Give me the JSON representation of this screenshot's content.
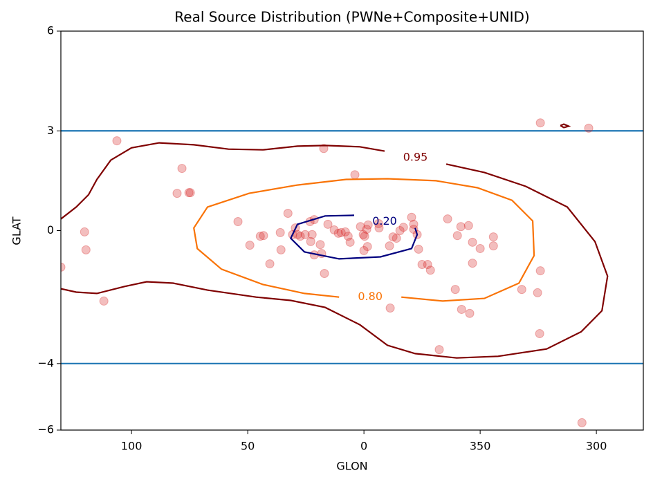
{
  "chart_data": {
    "type": "scatter-contour",
    "title": "Real Source Distribution (PWNe+Composite+UNID)",
    "x_label": "GLON",
    "y_label": "GLAT",
    "xlim": [
      130.4,
      -120.2
    ],
    "ylim": [
      -6,
      6
    ],
    "xticks": [
      100,
      50,
      0,
      {
        "value": -50,
        "label": "350"
      },
      {
        "value": -100,
        "label": "300"
      }
    ],
    "yticks": [
      {
        "value": -6,
        "label": "−6"
      },
      {
        "value": -4,
        "label": "−4"
      },
      0,
      3,
      6
    ],
    "hlines": {
      "color": "#1f77b4",
      "values": [
        3,
        -4
      ]
    },
    "points": {
      "color": "#d62728",
      "x": [
        130.4,
        120.2,
        119.6,
        111.9,
        106.3,
        80.4,
        78.3,
        75.3,
        74.7,
        54.2,
        49.1,
        44.6,
        43.2,
        40.5,
        36.0,
        35.7,
        32.7,
        30.7,
        29.5,
        28.6,
        27.4,
        25.3,
        23.2,
        22.9,
        22.3,
        21.4,
        21.4,
        18.8,
        18.2,
        17.3,
        17.0,
        15.5,
        12.8,
        11.0,
        9.8,
        8.0,
        6.8,
        5.95,
        3.9,
        1.5,
        0.3,
        0,
        -0.3,
        -1.2,
        -1.8,
        -1.5,
        -6.3,
        -6.5,
        -11.0,
        -11.3,
        -12.5,
        -14.0,
        -15.5,
        -17.0,
        -20.5,
        -21.4,
        -21.4,
        -22.9,
        -23.5,
        -25.0,
        -27.4,
        -28.6,
        -32.4,
        -36.0,
        -39.3,
        -40.2,
        -41.7,
        -42.0,
        -45.0,
        -45.5,
        -46.7,
        -46.7,
        -50.0,
        -55.7,
        -55.7,
        -67.9,
        -74.7,
        -75.9,
        -75.6,
        -75.9,
        -93.8,
        -96.7
      ],
      "y": [
        -1.1,
        -0.04,
        -0.58,
        -2.12,
        2.7,
        1.12,
        1.87,
        1.14,
        1.14,
        0.27,
        -0.44,
        -0.17,
        -0.15,
        -1.0,
        -0.06,
        -0.58,
        0.52,
        -0.12,
        0.08,
        -0.12,
        -0.17,
        -0.12,
        0.27,
        -0.33,
        -0.12,
        0.33,
        -0.73,
        -0.42,
        -0.69,
        2.47,
        -1.29,
        0.19,
        0.02,
        -0.08,
        -0.06,
        -0.04,
        -0.17,
        -0.35,
        1.68,
        0.12,
        -0.12,
        -0.6,
        -0.17,
        0.04,
        0.17,
        -0.48,
        0.21,
        0.08,
        -0.46,
        -2.33,
        -0.19,
        -0.23,
        0,
        0.1,
        0.4,
        0.19,
        0.04,
        -0.12,
        -0.56,
        -1.02,
        -1.02,
        -1.19,
        -3.58,
        0.35,
        -1.77,
        -0.15,
        0.12,
        -2.37,
        0.15,
        -2.49,
        -0.35,
        -0.98,
        -0.54,
        -0.19,
        -0.46,
        -1.77,
        -1.87,
        -1.21,
        -3.1,
        3.24,
        -5.78,
        3.08
      ]
    },
    "contours": [
      {
        "level": 0.95,
        "label": "0.95",
        "color": "#7f0000",
        "x": [
          130.4,
          123.8,
          118.5,
          114.9,
          108.9,
          100.0,
          88.1,
          73.2,
          58.3,
          43.5,
          28.6,
          16.7,
          1.8,
          -8.9,
          null,
          -35.4,
          -51.8,
          -69.6,
          -87.5,
          -99.4,
          -104.8,
          -102.4,
          -93.5,
          -78.6,
          -57.7,
          -39.9,
          -22.0,
          -10.1,
          1.8,
          16.7,
          31.5,
          46.4,
          67.3,
          82.1,
          93.5,
          103.0,
          114.9,
          123.8,
          130.4,
          null,
          -84.5,
          -86.0,
          -88.1,
          -86.0,
          -84.5
        ],
        "y": [
          0.35,
          0.71,
          1.08,
          1.54,
          2.12,
          2.49,
          2.64,
          2.58,
          2.45,
          2.43,
          2.54,
          2.56,
          2.52,
          2.39,
          null,
          2.0,
          1.75,
          1.33,
          0.71,
          -0.33,
          -1.37,
          -2.41,
          -3.04,
          -3.56,
          -3.78,
          -3.83,
          -3.7,
          -3.45,
          -2.83,
          -2.31,
          -2.1,
          -2.0,
          -1.79,
          -1.58,
          -1.54,
          -1.68,
          -1.89,
          -1.85,
          -1.75,
          null,
          3.16,
          3.2,
          3.14,
          3.1,
          3.16
        ]
      },
      {
        "level": 0.8,
        "label": "0.80",
        "color": "#f97306",
        "x": [
          -16.1,
          -33.9,
          -51.8,
          -66.7,
          -73.2,
          -72.6,
          -63.7,
          -48.8,
          -31.0,
          -10.1,
          7.7,
          28.6,
          49.4,
          67.3,
          73.2,
          71.7,
          61.3,
          43.5,
          25.6,
          10.7
        ],
        "y": [
          -2.0,
          -2.12,
          -2.04,
          -1.58,
          -0.75,
          0.29,
          0.91,
          1.29,
          1.5,
          1.56,
          1.54,
          1.37,
          1.12,
          0.71,
          0.08,
          -0.54,
          -1.16,
          -1.62,
          -1.89,
          -2.0
        ]
      },
      {
        "level": 0.2,
        "label": "0.20",
        "color": "#00007f",
        "x": [
          -22.0,
          -22.9,
          -20.5,
          -7.1,
          10.7,
          25.6,
          31.5,
          28.6,
          16.7,
          4.2
        ],
        "y": [
          0.08,
          -0.12,
          -0.54,
          -0.79,
          -0.85,
          -0.64,
          -0.23,
          0.19,
          0.44,
          0.46
        ]
      }
    ]
  }
}
